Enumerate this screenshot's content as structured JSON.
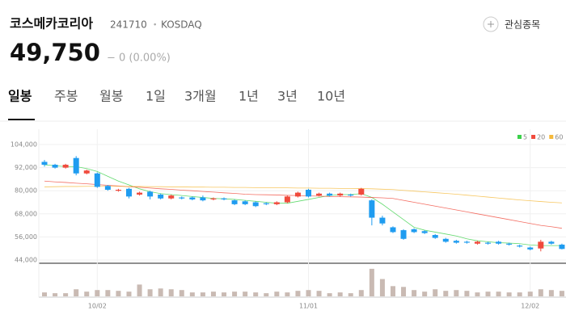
{
  "header": {
    "name": "코스메카코리아",
    "code": "241710",
    "separator": "•",
    "market": "KOSDAQ",
    "watch": "관심종목",
    "price": "49,750",
    "change": "− 0 (0.00%)"
  },
  "tabs": [
    "일봉",
    "주봉",
    "월봉",
    "1일",
    "3개월",
    "1년",
    "3년",
    "10년"
  ],
  "chart_data": {
    "type": "candlestick",
    "categories": [
      null,
      null,
      null,
      null,
      null,
      "10/02",
      null,
      null,
      null,
      null,
      null,
      null,
      null,
      null,
      null,
      null,
      null,
      null,
      null,
      null,
      null,
      null,
      null,
      null,
      null,
      "11/01",
      null,
      null,
      null,
      null,
      null,
      null,
      null,
      null,
      null,
      null,
      null,
      null,
      null,
      null,
      null,
      null,
      null,
      null,
      null,
      null,
      "12/02",
      null,
      null,
      null
    ],
    "open": [
      95000,
      93500,
      92000,
      97000,
      89000,
      89000,
      82500,
      80000,
      81000,
      78000,
      79500,
      78000,
      76000,
      76500,
      76500,
      76500,
      75500,
      76000,
      75000,
      74500,
      74000,
      73500,
      73000,
      74000,
      77000,
      80500,
      77500,
      78500,
      77500,
      78000,
      78000,
      75000,
      66000,
      61000,
      59500,
      60000,
      59000,
      57000,
      55000,
      54000,
      53500,
      52500,
      53000,
      53500,
      52500,
      51500,
      50500,
      50000,
      53500,
      52000
    ],
    "close": [
      93500,
      92000,
      93500,
      89000,
      90500,
      82000,
      80500,
      80500,
      77000,
      79000,
      77000,
      76000,
      77500,
      76000,
      75500,
      75000,
      76000,
      75500,
      73000,
      73000,
      72000,
      73000,
      74000,
      77000,
      79000,
      77000,
      78500,
      77500,
      78500,
      77500,
      81000,
      66000,
      63000,
      58500,
      55000,
      58500,
      58000,
      55500,
      53500,
      53000,
      53000,
      53500,
      52500,
      52500,
      52000,
      51000,
      49500,
      53500,
      52500,
      49750
    ],
    "high": [
      96000,
      94000,
      94000,
      98000,
      91000,
      89500,
      83000,
      81000,
      81500,
      79500,
      80000,
      78500,
      78000,
      77000,
      77000,
      77500,
      76500,
      76500,
      75500,
      75000,
      74500,
      74000,
      74500,
      77500,
      79500,
      81000,
      79000,
      79000,
      79000,
      78500,
      81500,
      75500,
      67000,
      61500,
      60000,
      60500,
      59500,
      57500,
      55500,
      54500,
      54000,
      54000,
      53500,
      54000,
      53000,
      52000,
      51000,
      54500,
      54000,
      52500
    ],
    "low": [
      92500,
      91500,
      91500,
      88000,
      88500,
      81500,
      80000,
      79500,
      76000,
      77500,
      75500,
      75500,
      75500,
      75500,
      75000,
      74500,
      75000,
      75000,
      72500,
      72500,
      71500,
      72500,
      72500,
      73500,
      76500,
      76500,
      77000,
      77000,
      77000,
      77000,
      77500,
      62000,
      62000,
      58000,
      54500,
      58000,
      57500,
      55000,
      53000,
      52500,
      52500,
      52000,
      52000,
      52000,
      51500,
      50500,
      49000,
      48500,
      52000,
      49500
    ],
    "up_color": "#f04a3c",
    "down_color": "#1f9cf0",
    "ylim": [
      44000,
      104000
    ],
    "yticks": [
      {
        "value": 104000,
        "label": "104,000"
      },
      {
        "value": 92000,
        "label": "92,000"
      },
      {
        "value": 80000,
        "label": "80,000"
      },
      {
        "value": 68000,
        "label": "68,000"
      },
      {
        "value": 56000,
        "label": "56,000"
      },
      {
        "value": 44000,
        "label": "44,000"
      }
    ],
    "grid": true,
    "moving_averages": [
      {
        "name": "5",
        "color": "#3bd14a",
        "values": [
          93500,
          93000,
          92500,
          92500,
          91500,
          90000,
          87500,
          85000,
          83000,
          81000,
          79500,
          78500,
          78000,
          77500,
          77000,
          76500,
          76000,
          75800,
          75500,
          75000,
          74500,
          74000,
          73500,
          73500,
          74500,
          75500,
          76500,
          77500,
          78000,
          78000,
          78500,
          76500,
          73000,
          69000,
          65000,
          61000,
          59500,
          58500,
          57500,
          56500,
          55000,
          54000,
          53500,
          53000,
          52800,
          52500,
          51800,
          51500,
          51500,
          51500
        ]
      },
      {
        "name": "20",
        "color": "#f04a3c",
        "values": [
          85000,
          84600,
          84300,
          83900,
          83600,
          83200,
          82800,
          82500,
          82100,
          81800,
          81400,
          81000,
          80700,
          80300,
          80000,
          79600,
          79300,
          78900,
          78600,
          78200,
          78000,
          77900,
          77800,
          77600,
          77500,
          77300,
          77200,
          77000,
          76900,
          76800,
          76700,
          76500,
          76300,
          76000,
          75000,
          74000,
          73000,
          72000,
          71000,
          70000,
          69000,
          68000,
          67000,
          66000,
          65000,
          64000,
          63000,
          62000,
          61300,
          60500
        ]
      },
      {
        "name": "60",
        "color": "#f5b93a",
        "values": [
          82000,
          82100,
          82200,
          82200,
          82300,
          82300,
          82300,
          82300,
          82200,
          82200,
          82100,
          82100,
          82000,
          82000,
          81900,
          81900,
          81800,
          81800,
          81700,
          81700,
          81600,
          81600,
          81500,
          81500,
          81400,
          81400,
          81300,
          81300,
          81200,
          81200,
          81100,
          81000,
          80800,
          80600,
          80200,
          79800,
          79400,
          79000,
          78600,
          78200,
          77700,
          77200,
          76700,
          76200,
          75700,
          75200,
          74800,
          74400,
          74000,
          73700
        ]
      }
    ],
    "volume": {
      "color": "#c9bab3",
      "ylim": [
        0,
        40
      ],
      "values": [
        5,
        4,
        4,
        9,
        6,
        8,
        8,
        7,
        6,
        15,
        9,
        10,
        9,
        8,
        5,
        5,
        6,
        5,
        6,
        6,
        5,
        4,
        6,
        5,
        7,
        8,
        7,
        4,
        5,
        4,
        8,
        35,
        22,
        13,
        12,
        8,
        6,
        9,
        7,
        8,
        7,
        5,
        6,
        6,
        5,
        5,
        6,
        9,
        8,
        7
      ]
    }
  }
}
